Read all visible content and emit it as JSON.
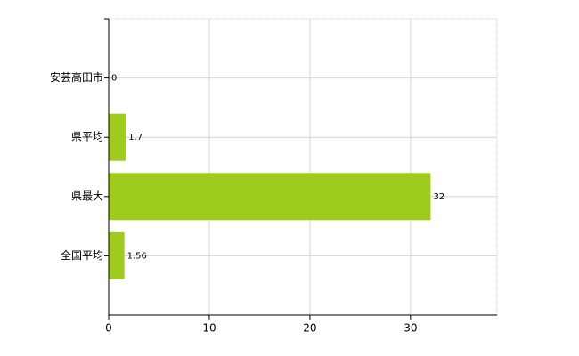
{
  "chart_data": {
    "type": "bar",
    "orientation": "horizontal",
    "categories": [
      "安芸高田市",
      "県平均",
      "県最大",
      "全国平均"
    ],
    "values": [
      0,
      1.7,
      32,
      1.56
    ],
    "color": "#9fcb1c",
    "xlim": [
      0,
      38.6
    ],
    "xticks": [
      0,
      10,
      20,
      30
    ],
    "grid": true
  }
}
